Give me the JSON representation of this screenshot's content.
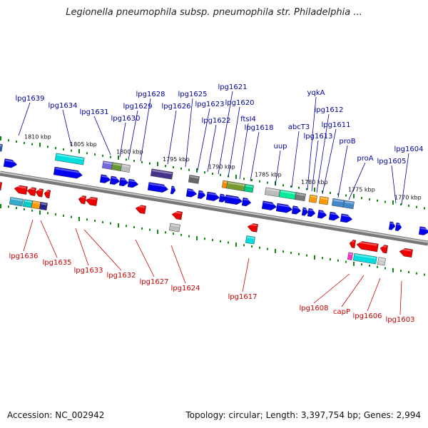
{
  "title": "Legionella pneumophila subsp. pneumophila str. Philadelphia ...",
  "footer": {
    "accession": "Accession: NC_002942",
    "summary": "Topology: circular; Length: 3,397,754 bp; Genes: 2,994"
  },
  "colors": {
    "forward_label": "#00009e",
    "reverse_label": "#cc0000",
    "forward_gene": "#0000ee",
    "reverse_gene": "#ee0000",
    "tick": "#118811",
    "backbone": "#888888"
  },
  "scale_labels": [
    "1810 kbp",
    "1805 kbp",
    "1800 kbp",
    "1795 kbp",
    "1790 kbp",
    "1785 kbp",
    "1780 kbp",
    "1775 kbp",
    "1770 kbp"
  ],
  "forward_genes": [
    "lpg1639",
    "lpg1634",
    "lpg1631",
    "lpg1630",
    "lpg1629",
    "lpg1628",
    "lpg1626",
    "lpg1625",
    "lpg1623",
    "lpg1622",
    "lpg1621",
    "lpg1620",
    "ftsI4",
    "lpg1618",
    "uup",
    "abcT3",
    "yqkA",
    "lpg1613",
    "lpg1612",
    "lpg1611",
    "proB",
    "proA",
    "lpg1605",
    "lpg1604"
  ],
  "reverse_genes": [
    "lpg1636",
    "lpg1635",
    "lpg1633",
    "lpg1632",
    "lpg1627",
    "lpg1624",
    "lpg1617",
    "lpg1608",
    "capP",
    "lpg1606",
    "lpg1603"
  ]
}
